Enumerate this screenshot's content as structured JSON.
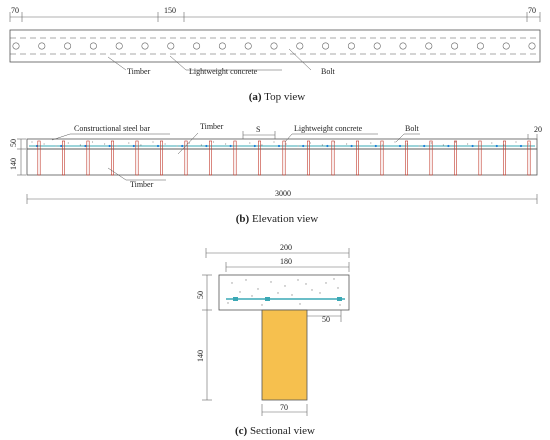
{
  "top_view": {
    "dim_left": "70",
    "dim_mid": "150",
    "dim_right": "70",
    "label_timber": "Timber",
    "label_concrete": "Lightweight concrete",
    "label_bolt": "Bolt",
    "caption_prefix": "(a)",
    "caption_text": " Top view"
  },
  "elevation_view": {
    "dim_top": "50",
    "dim_bottom": "140",
    "dim_spacing": "S",
    "dim_right": "20",
    "dim_length": "3000",
    "label_steel_bar": "Constructional steel bar",
    "label_timber_top": "Timber",
    "label_concrete": "Lightweight concrete",
    "label_bolt": "Bolt",
    "label_timber_bottom": "Timber",
    "caption_prefix": "(b)",
    "caption_text": " Elevation view"
  },
  "sectional_view": {
    "dim_width_total": "200",
    "dim_width_inner": "180",
    "dim_slab_height": "50",
    "dim_timber_height": "140",
    "dim_offset": "50",
    "dim_timber_width": "70",
    "caption_prefix": "(c)",
    "caption_text": " Sectional view"
  },
  "colors": {
    "line": "#555555",
    "bolt": "#c0392b",
    "steel_bar": "#3aa8b5",
    "dots": "#1a7fd6",
    "timber_fill": "#f6c04e",
    "dim_line": "#666666"
  }
}
